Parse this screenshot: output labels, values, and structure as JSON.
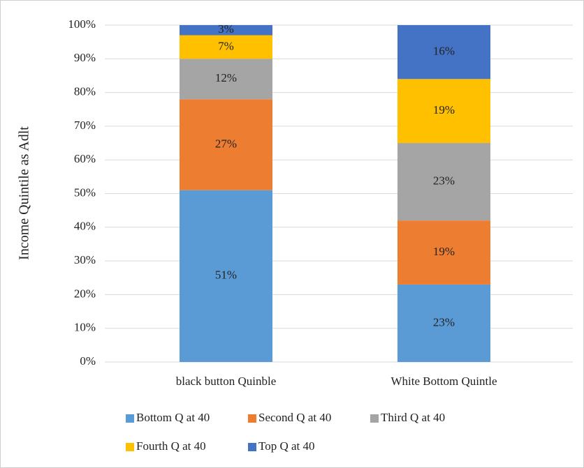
{
  "chart_data": {
    "type": "stacked_bar",
    "y_label": "Income Quintile as Adlt",
    "categories": [
      "black button Quinble",
      "White Bottom Quintle"
    ],
    "series": [
      {
        "name": "Bottom Q at 40",
        "color": "#5b9bd5",
        "values": [
          51,
          23
        ],
        "value_labels": [
          "51%",
          "23%"
        ]
      },
      {
        "name": "Second Q at 40",
        "color": "#ed7d31",
        "values": [
          27,
          19
        ],
        "value_labels": [
          "27%",
          "19%"
        ]
      },
      {
        "name": "Third Q at 40",
        "color": "#a5a5a5",
        "values": [
          12,
          23
        ],
        "value_labels": [
          "12%",
          "23%"
        ]
      },
      {
        "name": "Fourth Q at 40",
        "color": "#ffc000",
        "values": [
          7,
          19
        ],
        "value_labels": [
          "7%",
          "19%"
        ]
      },
      {
        "name": "Top Q at 40",
        "color": "#4472c4",
        "values": [
          3,
          16
        ],
        "value_labels": [
          "3%",
          "16%"
        ]
      }
    ],
    "ylim": [
      0,
      100
    ],
    "yticks": [
      {
        "value": 0,
        "label": "0%"
      },
      {
        "value": 10,
        "label": "10%"
      },
      {
        "value": 20,
        "label": "20%"
      },
      {
        "value": 30,
        "label": "30%"
      },
      {
        "value": 40,
        "label": "40%"
      },
      {
        "value": 50,
        "label": "50%"
      },
      {
        "value": 60,
        "label": "60%"
      },
      {
        "value": 70,
        "label": "70%"
      },
      {
        "value": 80,
        "label": "80%"
      },
      {
        "value": 90,
        "label": "90%"
      },
      {
        "value": 100,
        "label": "100%"
      }
    ],
    "grid": true,
    "legend": "bottom"
  }
}
